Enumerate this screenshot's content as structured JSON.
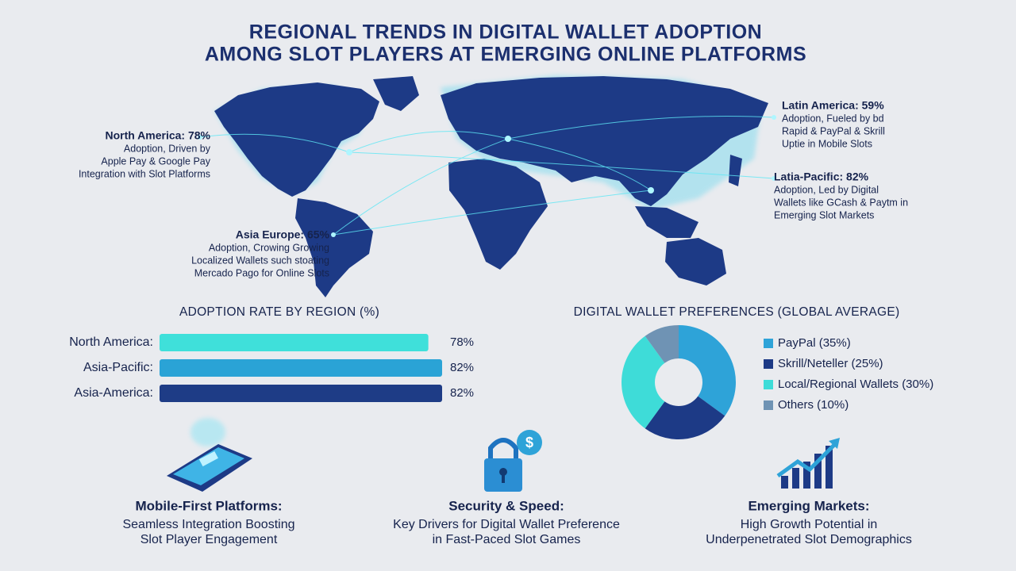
{
  "title": [
    "REGIONAL TRENDS IN DIGITAL WALLET ADOPTION",
    "AMONG SLOT PLAYERS AT EMERGING ONLINE PLATFORMS"
  ],
  "map_callouts": [
    {
      "heading": "North America: 78%",
      "lines": [
        "Adoption, Driven by",
        "Apple Pay & Google Pay",
        "Integration with Slot Platforms"
      ]
    },
    {
      "heading": "Latin America: 59%",
      "lines": [
        "Adoption, Fueled by bd",
        "Rapid & PayPal & Skrill",
        "Uptie in Mobile Slots"
      ]
    },
    {
      "heading": "Latia-Pacific: 82%",
      "lines": [
        "Adoption, Led by Digital",
        "Wallets like GCash & Paytm in",
        "Emerging Slot Markets"
      ]
    },
    {
      "heading": "Asia Europe: 65%",
      "lines": [
        "Adoption, Crowing Growing",
        "Localized Wallets such stoating",
        "Mercado Pago for Online Slots"
      ]
    }
  ],
  "chart_data": [
    {
      "type": "bar",
      "title": "ADOPTION RATE BY REGION (%)",
      "categories": [
        "North America:",
        "Asia-Pacific:",
        "Asia-America:"
      ],
      "values": [
        78,
        82,
        82
      ],
      "value_labels": [
        "78%",
        "82%",
        "82%"
      ],
      "colors": [
        "#3fe0da",
        "#2aa3d6",
        "#1e3c86"
      ]
    },
    {
      "type": "pie",
      "title": "DIGITAL WALLET PREFERENCES (GLOBAL AVERAGE)",
      "categories": [
        "PayPal (35%)",
        "Skrill/Neteller (25%)",
        "Local/Regional Wallets (30%)",
        "Others (10%)"
      ],
      "values": [
        35,
        25,
        30,
        10
      ],
      "colors": [
        "#2ea3d8",
        "#1d3a86",
        "#3edcd8",
        "#6f93b4"
      ],
      "donut": true
    }
  ],
  "features": [
    {
      "title": "Mobile-First Platforms:",
      "lines": [
        "Seamless Integration Boosting",
        "Slot Player Engagement"
      ]
    },
    {
      "title": "Security & Speed:",
      "lines": [
        "Key Drivers for Digital Wallet Preference",
        "in Fast-Paced Slot Games"
      ]
    },
    {
      "title": "Emerging Markets:",
      "lines": [
        "High Growth Potential in",
        "Underpenetrated Slot Demographics"
      ]
    }
  ]
}
